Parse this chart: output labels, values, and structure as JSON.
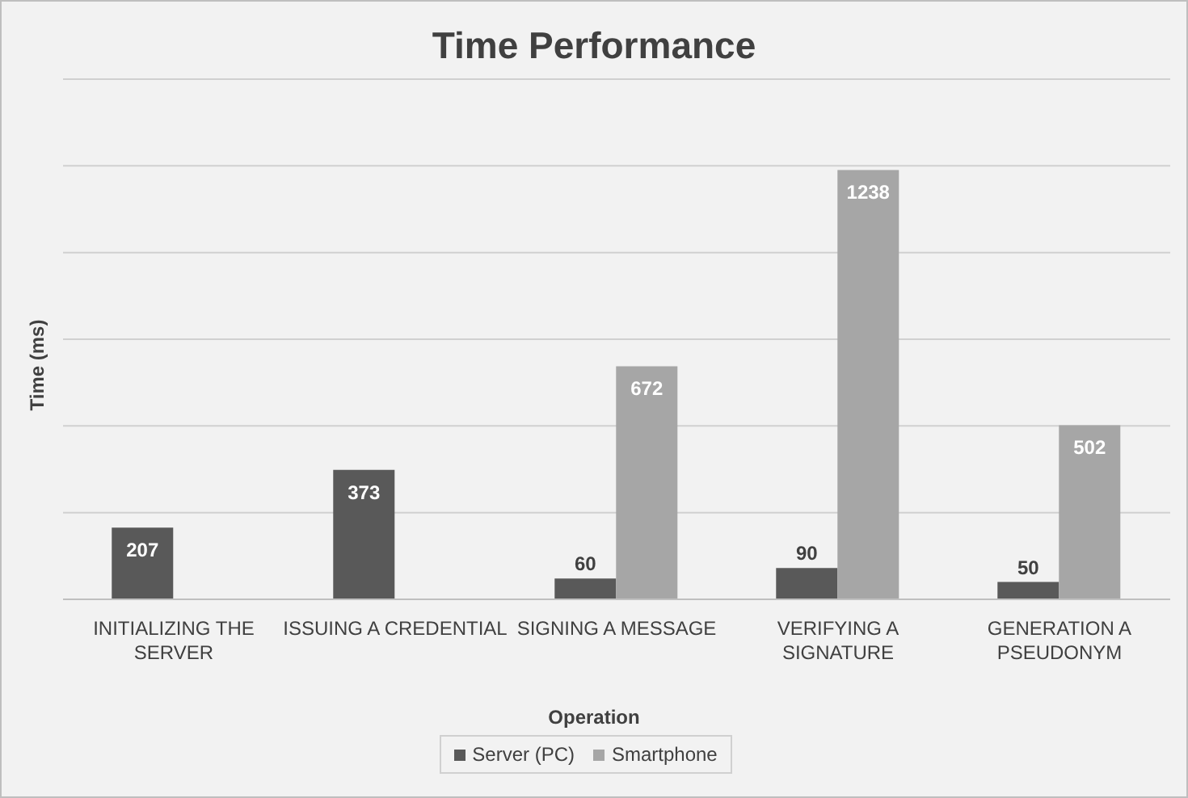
{
  "chart_data": {
    "type": "bar",
    "title": "Time Performance",
    "xlabel": "Operation",
    "ylabel": "Time (ms)",
    "categories": [
      "INITIALIZING THE SERVER",
      "ISSUING A CREDENTIAL",
      "SIGNING A MESSAGE",
      "VERIFYING A SIGNATURE",
      "GENERATION A PSEUDONYM"
    ],
    "series": [
      {
        "name": "Server (PC)",
        "color": "#595959",
        "values": [
          207,
          373,
          60,
          90,
          50
        ]
      },
      {
        "name": "Smartphone",
        "color": "#a6a6a6",
        "values": [
          null,
          null,
          672,
          1238,
          502
        ]
      }
    ],
    "tick_labels": "x",
    "grid": "y",
    "data_labels": true,
    "legend": "bottom"
  }
}
